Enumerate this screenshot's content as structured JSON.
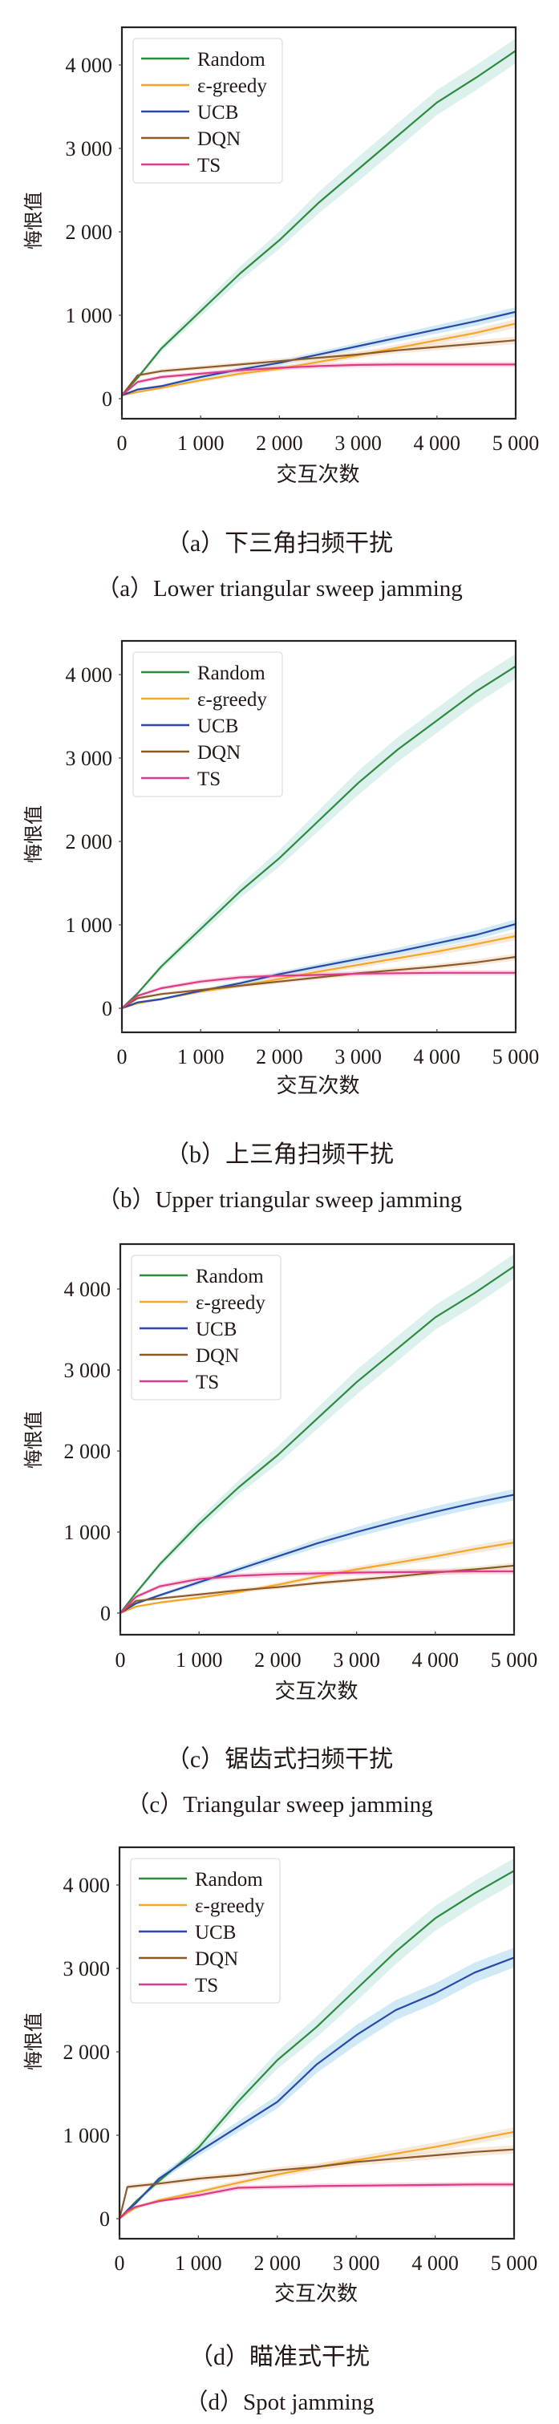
{
  "chart_data": [
    {
      "type": "line",
      "panel_id": "a",
      "xlabel": "交互次数",
      "ylabel": "悔恨值",
      "xlim": [
        0,
        5000
      ],
      "ylim": [
        -230,
        4400
      ],
      "xticks": [
        0,
        1000,
        2000,
        3000,
        4000,
        5000
      ],
      "xtick_labels": [
        "0",
        "1 000",
        "2 000",
        "3 000",
        "4 000",
        "5 000"
      ],
      "yticks": [
        0,
        1000,
        2000,
        3000,
        4000
      ],
      "ytick_labels": [
        "0",
        "1 000",
        "2 000",
        "3 000",
        "4 000"
      ],
      "legend_position": "top-left",
      "caption_cn": "（a）下三角扫频干扰",
      "caption_en": "（a）Lower triangular sweep jamming",
      "x": [
        0,
        200,
        500,
        1000,
        1500,
        2000,
        2500,
        3000,
        3500,
        4000,
        4500,
        5000
      ],
      "series": [
        {
          "name": "Random",
          "values": [
            40,
            250,
            600,
            1050,
            1500,
            1900,
            2350,
            2750,
            3150,
            3550,
            3850,
            4170
          ]
        },
        {
          "name": "ε-greedy",
          "values": [
            40,
            80,
            130,
            220,
            300,
            360,
            440,
            520,
            610,
            700,
            790,
            900
          ]
        },
        {
          "name": "UCB",
          "values": [
            40,
            110,
            150,
            260,
            350,
            430,
            530,
            630,
            730,
            830,
            930,
            1040
          ]
        },
        {
          "name": "DQN",
          "values": [
            40,
            280,
            330,
            370,
            410,
            450,
            490,
            530,
            580,
            620,
            660,
            700
          ]
        },
        {
          "name": "TS",
          "values": [
            40,
            200,
            260,
            300,
            340,
            370,
            390,
            405,
            410,
            410,
            410,
            410
          ]
        }
      ]
    },
    {
      "type": "line",
      "panel_id": "b",
      "xlabel": "交互次数",
      "ylabel": "悔恨值",
      "xlim": [
        0,
        5000
      ],
      "ylim": [
        -250,
        4400
      ],
      "xticks": [
        0,
        1000,
        2000,
        3000,
        4000,
        5000
      ],
      "xtick_labels": [
        "0",
        "1 000",
        "2 000",
        "3 000",
        "4 000",
        "5 000"
      ],
      "yticks": [
        0,
        1000,
        2000,
        3000,
        4000
      ],
      "ytick_labels": [
        "0",
        "1 000",
        "2 000",
        "3 000",
        "4 000"
      ],
      "legend_position": "top-left",
      "caption_cn": "（b）上三角扫频干扰",
      "caption_en": "（b）Upper triangular sweep jamming",
      "x": [
        0,
        200,
        500,
        1000,
        1500,
        2000,
        2500,
        3000,
        3500,
        4000,
        4500,
        5000
      ],
      "series": [
        {
          "name": "Random",
          "values": [
            0,
            180,
            500,
            950,
            1400,
            1800,
            2250,
            2700,
            3100,
            3450,
            3800,
            4100
          ]
        },
        {
          "name": "ε-greedy",
          "values": [
            0,
            60,
            110,
            200,
            270,
            350,
            440,
            520,
            600,
            680,
            770,
            865
          ]
        },
        {
          "name": "UCB",
          "values": [
            0,
            70,
            110,
            210,
            300,
            410,
            500,
            590,
            680,
            780,
            880,
            1010
          ]
        },
        {
          "name": "DQN",
          "values": [
            0,
            120,
            170,
            220,
            270,
            320,
            370,
            420,
            460,
            500,
            550,
            615
          ]
        },
        {
          "name": "TS",
          "values": [
            0,
            150,
            240,
            320,
            370,
            390,
            400,
            415,
            420,
            425,
            425,
            425
          ]
        }
      ]
    },
    {
      "type": "line",
      "panel_id": "c",
      "xlabel": "交互次数",
      "ylabel": "悔恨值",
      "xlim": [
        0,
        5000
      ],
      "ylim": [
        -265,
        4600
      ],
      "xticks": [
        0,
        1000,
        2000,
        3000,
        4000,
        5000
      ],
      "xtick_labels": [
        "0",
        "1 000",
        "2 000",
        "3 000",
        "4 000",
        "5 000"
      ],
      "yticks": [
        0,
        1000,
        2000,
        3000,
        4000
      ],
      "ytick_labels": [
        "0",
        "1 000",
        "2 000",
        "3 000",
        "4 000"
      ],
      "legend_position": "top-left",
      "caption_cn": "（c）锯齿式扫频干扰",
      "caption_en": "（c）Triangular sweep jamming",
      "x": [
        0,
        200,
        500,
        1000,
        1500,
        2000,
        2500,
        3000,
        3500,
        4000,
        4500,
        5000
      ],
      "series": [
        {
          "name": "Random",
          "values": [
            0,
            250,
            600,
            1100,
            1550,
            1950,
            2400,
            2850,
            3250,
            3650,
            3950,
            4280
          ]
        },
        {
          "name": "ε-greedy",
          "values": [
            0,
            80,
            130,
            190,
            260,
            350,
            450,
            540,
            620,
            700,
            790,
            870
          ]
        },
        {
          "name": "UCB",
          "values": [
            0,
            120,
            220,
            380,
            540,
            700,
            860,
            1000,
            1130,
            1250,
            1360,
            1460
          ]
        },
        {
          "name": "DQN",
          "values": [
            0,
            150,
            180,
            230,
            280,
            320,
            370,
            410,
            450,
            500,
            540,
            585
          ]
        },
        {
          "name": "TS",
          "values": [
            0,
            200,
            330,
            420,
            460,
            480,
            490,
            500,
            505,
            510,
            515,
            515
          ]
        }
      ]
    },
    {
      "type": "line",
      "panel_id": "d",
      "xlabel": "交互次数",
      "ylabel": "悔恨值",
      "xlim": [
        0,
        5000
      ],
      "ylim": [
        -240,
        4400
      ],
      "xticks": [
        0,
        1000,
        2000,
        3000,
        4000,
        5000
      ],
      "xtick_labels": [
        "0",
        "1 000",
        "2 000",
        "3 000",
        "4 000",
        "5 000"
      ],
      "yticks": [
        0,
        1000,
        2000,
        3000,
        4000
      ],
      "ytick_labels": [
        "0",
        "1 000",
        "2 000",
        "3 000",
        "4 000"
      ],
      "legend_position": "top-left",
      "caption_cn": "（d）瞄准式干扰",
      "caption_en": "（d）Spot jamming",
      "x": [
        0,
        100,
        200,
        500,
        1000,
        1500,
        2000,
        2500,
        3000,
        3500,
        4000,
        4500,
        5000
      ],
      "series": [
        {
          "name": "Random",
          "values": [
            0,
            100,
            200,
            450,
            850,
            1400,
            1900,
            2300,
            2750,
            3200,
            3600,
            3900,
            4170
          ]
        },
        {
          "name": "ε-greedy",
          "values": [
            0,
            70,
            130,
            220,
            320,
            430,
            530,
            620,
            700,
            780,
            860,
            950,
            1040
          ]
        },
        {
          "name": "UCB",
          "values": [
            0,
            100,
            180,
            480,
            800,
            1100,
            1400,
            1850,
            2200,
            2500,
            2700,
            2950,
            3130
          ]
        },
        {
          "name": "DQN",
          "values": [
            0,
            380,
            390,
            420,
            480,
            520,
            580,
            620,
            680,
            720,
            760,
            800,
            830
          ]
        },
        {
          "name": "TS",
          "values": [
            0,
            90,
            140,
            210,
            280,
            370,
            380,
            390,
            395,
            400,
            405,
            410,
            410
          ]
        }
      ]
    }
  ],
  "legend": {
    "entries": [
      "Random",
      "ε-greedy",
      "UCB",
      "DQN",
      "TS"
    ]
  },
  "colors": {
    "Random": "#2e8b3e",
    "ε-greedy": "#f5a623",
    "UCB": "#2b47a8",
    "DQN": "#8b5a2b",
    "TS": "#e0388a",
    "band_Random": "#bfe6e0",
    "band_ε-greedy": "#f0d9c0",
    "band_UCB": "#a8d8ee",
    "band_DQN": "#f0d9c0",
    "band_TS": "#f5b8c4"
  }
}
